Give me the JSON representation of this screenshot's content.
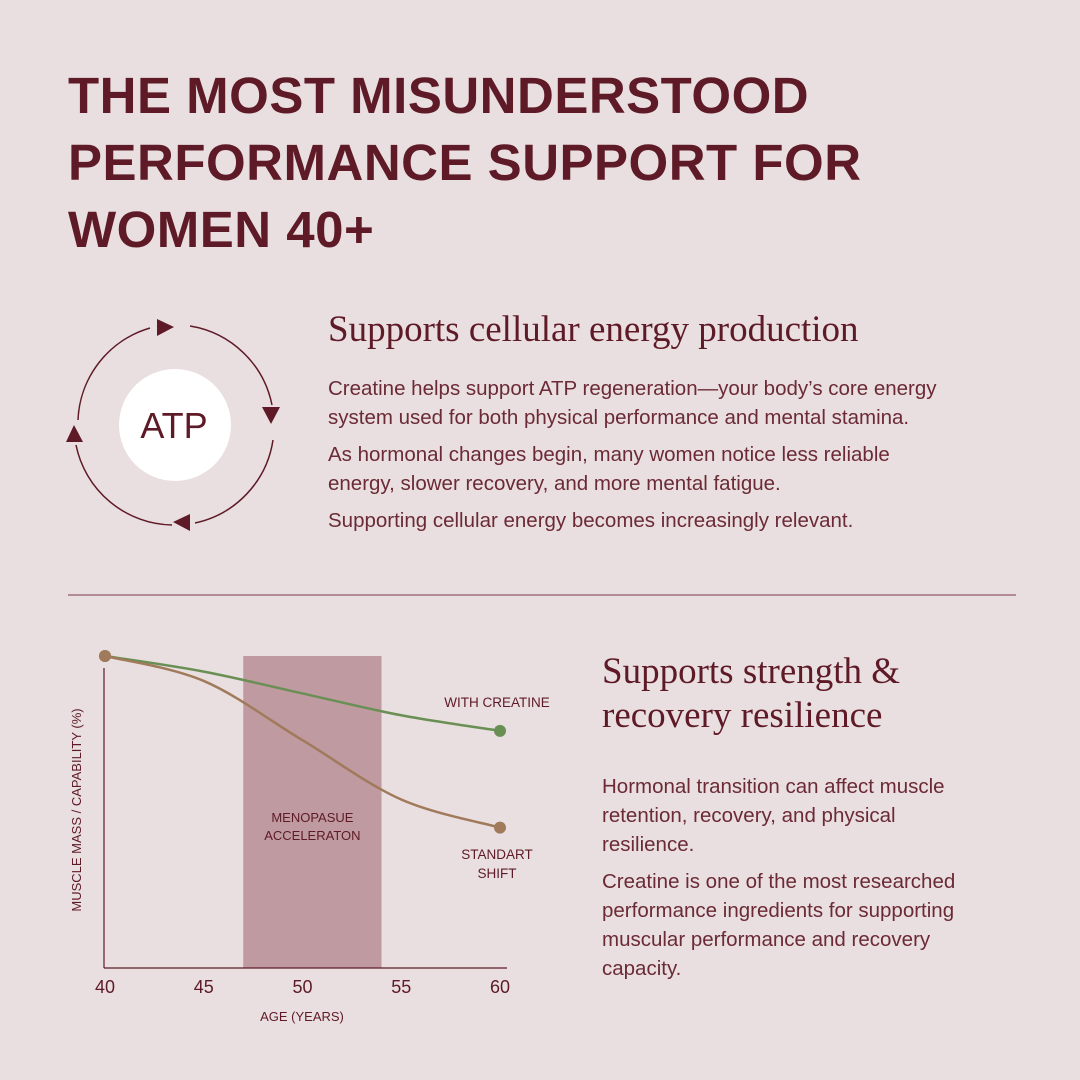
{
  "header": {
    "title_lines": [
      "THE MOST MISUNDERSTOOD",
      "PERFORMANCE SUPPORT FOR",
      "WOMEN 40+"
    ]
  },
  "cycle": {
    "label": "ATP"
  },
  "section_1": {
    "heading": "Supports cellular energy production",
    "paragraphs": [
      [
        "Creatine helps support ATP regeneration—your body’s core energy",
        "system used for both physical performance and mental stamina."
      ],
      [
        "As hormonal changes begin, many women notice less reliable",
        "energy, slower recovery, and more mental fatigue."
      ],
      [
        "Supporting cellular energy becomes increasingly relevant."
      ]
    ]
  },
  "section_2": {
    "heading_lines": [
      "Supports strength &",
      "recovery resilience"
    ],
    "paragraphs": [
      [
        "Hormonal transition can affect muscle",
        "retention, recovery, and physical",
        "resilience."
      ],
      [
        "Creatine is one of the most researched",
        "performance ingredients for supporting",
        "muscular performance and recovery",
        "capacity."
      ]
    ]
  },
  "chart_data": {
    "type": "line",
    "x_label": "AGE (YEARS)",
    "y_label": "MUSCLE MASS / CAPABILITY (%)",
    "x": [
      40,
      45,
      50,
      55,
      60
    ],
    "xlim": [
      40,
      60
    ],
    "xticks": [
      40,
      45,
      50,
      55,
      60
    ],
    "ylim": [
      0,
      100
    ],
    "band": {
      "start": 47,
      "end": 54,
      "color": "#bf9aa0",
      "label_lines": [
        "MENOPASUE",
        "ACCELERATON"
      ]
    },
    "series": [
      {
        "name": "WITH CREATINE",
        "label_lines": [
          "WITH CREATINE"
        ],
        "color": "#6a8f55",
        "values": [
          100,
          95,
          88,
          81,
          76
        ]
      },
      {
        "name": "STANDART SHIFT",
        "label_lines": [
          "STANDART",
          "SHIFT"
        ],
        "color": "#a07a5a",
        "values": [
          100,
          92,
          73,
          54,
          45
        ]
      }
    ]
  }
}
